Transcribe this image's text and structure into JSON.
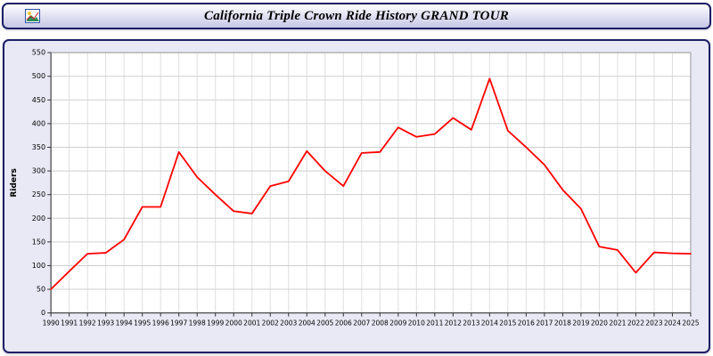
{
  "header": {
    "title": "California Triple Crown Ride History GRAND TOUR"
  },
  "colors": {
    "panel_border": "#1e1e64",
    "panel_bg": "#e9e9f6",
    "plot_bg": "#ffffff",
    "grid_h": "#cfcfcf",
    "grid_v": "#dedede",
    "axis": "#333333",
    "line": "#ff0000"
  },
  "chart_data": {
    "type": "line",
    "title": "California Triple Crown Ride History GRAND TOUR",
    "xlabel": "",
    "ylabel": "Riders",
    "ylim": [
      0,
      550
    ],
    "ytick_step": 50,
    "grid": true,
    "legend_position": "none",
    "x": [
      1990,
      1991,
      1992,
      1993,
      1994,
      1995,
      1996,
      1997,
      1998,
      1999,
      2000,
      2001,
      2002,
      2003,
      2004,
      2005,
      2006,
      2007,
      2008,
      2009,
      2010,
      2011,
      2012,
      2013,
      2014,
      2015,
      2016,
      2017,
      2018,
      2019,
      2020,
      2021,
      2022,
      2023,
      2024,
      2025
    ],
    "series": [
      {
        "name": "Riders",
        "color": "#ff0000",
        "values": [
          50,
          88,
          125,
          127,
          155,
          224,
          224,
          340,
          287,
          250,
          215,
          210,
          268,
          278,
          342,
          300,
          268,
          338,
          340,
          392,
          372,
          378,
          412,
          387,
          495,
          385,
          350,
          313,
          260,
          220,
          140,
          133,
          85,
          128,
          126,
          125
        ]
      }
    ]
  }
}
